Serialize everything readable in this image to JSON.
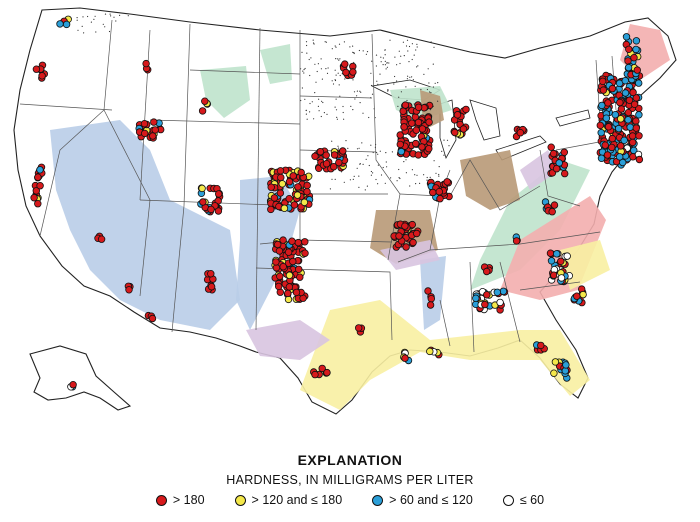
{
  "explanation": {
    "title": "EXPLANATION",
    "subtitle": "HARDNESS, IN MILLIGRAMS PER LITER",
    "classes": [
      {
        "label": "> 180",
        "color": "#d7191c",
        "key": "gt180"
      },
      {
        "label": "> 120 and ≤ 180",
        "color": "#f4e84a",
        "key": "120to180"
      },
      {
        "label": "> 60 and ≤ 120",
        "color": "#2b9fd8",
        "key": "60to120"
      },
      {
        "label": "≤ 60",
        "color": "#ffffff",
        "key": "le60"
      }
    ]
  },
  "aquifer_colors": {
    "basin_fill_blue": "#b9cde8",
    "carbonate_brown": "#b89977",
    "crystalline_pink": "#f3aeae",
    "coastal_plain_yellow": "#f8f0a2",
    "glacial_green": "#bfe3cc",
    "sandstone_purple": "#d8c4e0",
    "dotted_glacial": "stippled"
  }
}
